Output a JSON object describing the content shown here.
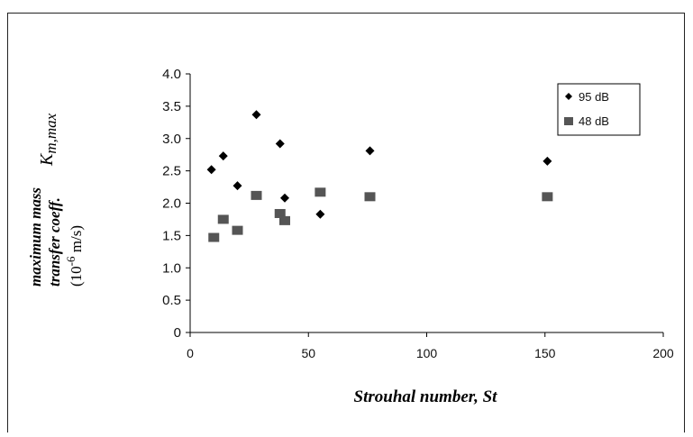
{
  "chart_data": {
    "type": "scatter",
    "title": "",
    "xlabel": "Strouhal number, St",
    "ylabel_lines": [
      "maximum mass",
      "transfer coeff.",
      "(10",
      "-6",
      " m/s)",
      "K",
      "m,max"
    ],
    "xlim": [
      0,
      200
    ],
    "ylim": [
      0,
      4.0
    ],
    "x_ticks": [
      "0",
      "50",
      "100",
      "150",
      "200"
    ],
    "y_ticks": [
      "0",
      "0.5",
      "1.0",
      "1.5",
      "2.0",
      "2.5",
      "3.0",
      "3.5",
      "4.0"
    ],
    "grid": false,
    "legend_position": "top-right",
    "series": [
      {
        "name": "95 dB",
        "marker": "diamond",
        "color": "#000000",
        "points": [
          {
            "x": 9,
            "y": 2.52
          },
          {
            "x": 14,
            "y": 2.73
          },
          {
            "x": 20,
            "y": 2.27
          },
          {
            "x": 28,
            "y": 3.37
          },
          {
            "x": 38,
            "y": 2.92
          },
          {
            "x": 40,
            "y": 2.08
          },
          {
            "x": 55,
            "y": 1.83
          },
          {
            "x": 76,
            "y": 2.81
          },
          {
            "x": 151,
            "y": 2.65
          }
        ]
      },
      {
        "name": "48 dB",
        "marker": "square",
        "color": "#555555",
        "points": [
          {
            "x": 10,
            "y": 1.47
          },
          {
            "x": 14,
            "y": 1.75
          },
          {
            "x": 20,
            "y": 1.58
          },
          {
            "x": 28,
            "y": 2.12
          },
          {
            "x": 38,
            "y": 1.84
          },
          {
            "x": 40,
            "y": 1.73
          },
          {
            "x": 55,
            "y": 2.17
          },
          {
            "x": 76,
            "y": 2.1
          },
          {
            "x": 151,
            "y": 2.1
          }
        ]
      }
    ]
  }
}
